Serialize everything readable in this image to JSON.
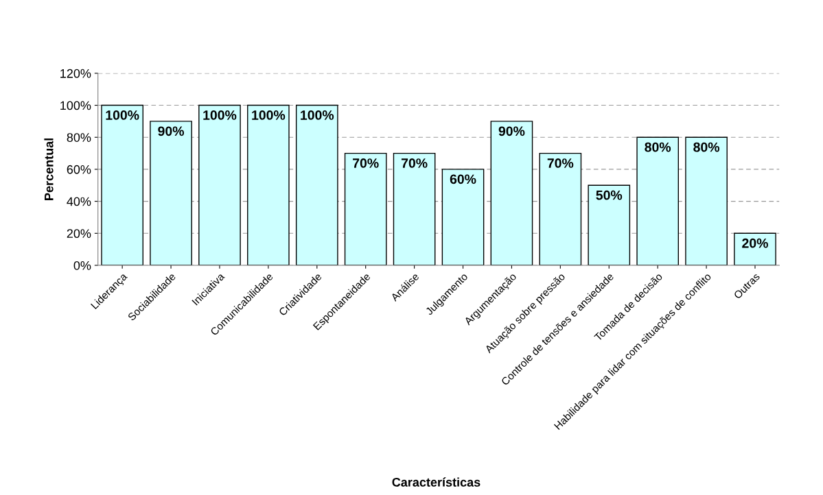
{
  "chart_data": {
    "type": "bar",
    "xlabel": "Características",
    "ylabel": "Percentual",
    "categories": [
      "Liderança",
      "Sociabilidade",
      "Iniciativa",
      "Comunicabilidade",
      "Criatividade",
      "Espontaneidade",
      "Análise",
      "Julgamento",
      "Argumentação",
      "Atuação sobre pressão",
      "Controle de tensões e ansiedade",
      "Tomada de decisão",
      "Habilidade para lidar com situações de conflito",
      "Outras"
    ],
    "values": [
      100,
      90,
      100,
      100,
      100,
      70,
      70,
      60,
      90,
      70,
      50,
      80,
      80,
      20
    ],
    "value_labels": [
      "100%",
      "90%",
      "100%",
      "100%",
      "100%",
      "70%",
      "70%",
      "60%",
      "90%",
      "70%",
      "50%",
      "80%",
      "80%",
      "20%"
    ],
    "color": "#ccffff",
    "ylim": [
      0,
      120
    ],
    "yticks": [
      {
        "value": 0,
        "label": "0%"
      },
      {
        "value": 20,
        "label": "20%"
      },
      {
        "value": 40,
        "label": "40%"
      },
      {
        "value": 60,
        "label": "60%"
      },
      {
        "value": 80,
        "label": "80%"
      },
      {
        "value": 100,
        "label": "100%"
      },
      {
        "value": 120,
        "label": "120%"
      }
    ],
    "grid": "y",
    "legend": false
  }
}
